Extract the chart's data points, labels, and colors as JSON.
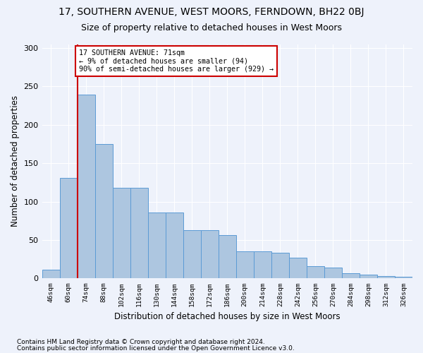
{
  "title1": "17, SOUTHERN AVENUE, WEST MOORS, FERNDOWN, BH22 0BJ",
  "title2": "Size of property relative to detached houses in West Moors",
  "xlabel": "Distribution of detached houses by size in West Moors",
  "ylabel": "Number of detached properties",
  "categories": [
    "46sqm",
    "60sqm",
    "74sqm",
    "88sqm",
    "102sqm",
    "116sqm",
    "130sqm",
    "144sqm",
    "158sqm",
    "172sqm",
    "186sqm",
    "200sqm",
    "214sqm",
    "228sqm",
    "242sqm",
    "256sqm",
    "270sqm",
    "284sqm",
    "298sqm",
    "312sqm",
    "326sqm"
  ],
  "bar_heights": [
    11,
    131,
    239,
    175,
    118,
    118,
    86,
    86,
    63,
    63,
    56,
    35,
    35,
    33,
    27,
    16,
    14,
    7,
    5,
    3,
    2
  ],
  "bar_color": "#adc6e0",
  "bar_edge_color": "#5b9bd5",
  "annotation_text": "17 SOUTHERN AVENUE: 71sqm\n← 9% of detached houses are smaller (94)\n90% of semi-detached houses are larger (929) →",
  "annotation_box_color": "#ffffff",
  "annotation_box_edge": "#cc0000",
  "vline_color": "#cc0000",
  "ylim": [
    0,
    305
  ],
  "yticks": [
    0,
    50,
    100,
    150,
    200,
    250,
    300
  ],
  "footnote1": "Contains HM Land Registry data © Crown copyright and database right 2024.",
  "footnote2": "Contains public sector information licensed under the Open Government Licence v3.0.",
  "bg_color": "#eef2fb",
  "grid_color": "#ffffff",
  "title1_fontsize": 10,
  "title2_fontsize": 9,
  "xlabel_fontsize": 8.5,
  "ylabel_fontsize": 8.5,
  "footnote_fontsize": 6.5
}
